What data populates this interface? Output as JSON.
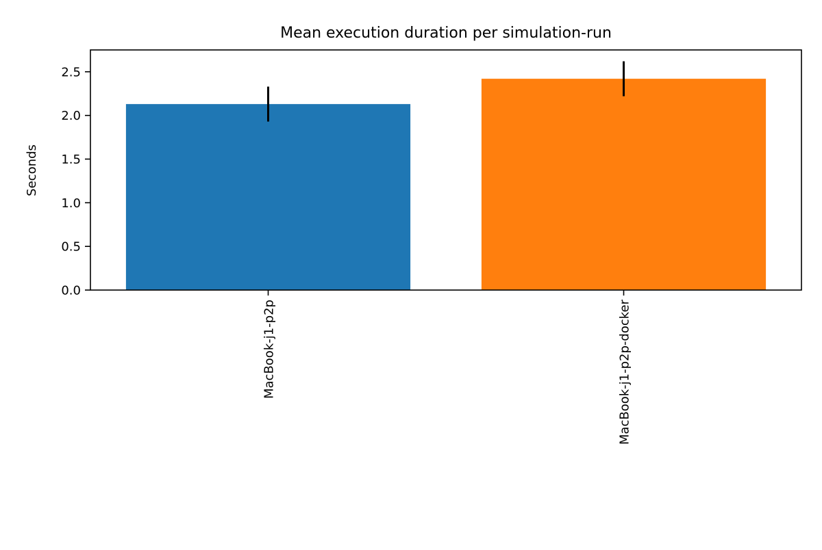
{
  "chart_data": {
    "type": "bar",
    "title": "Mean execution duration per simulation-run",
    "xlabel": "",
    "ylabel": "Seconds",
    "categories": [
      "MacBook-j1-p2p",
      "MacBook-j1-p2p-docker"
    ],
    "values": [
      2.13,
      2.42
    ],
    "errors": [
      0.2,
      0.2
    ],
    "colors": [
      "#1f77b4",
      "#ff7f0e"
    ],
    "error_color": "#000000",
    "ylim": [
      0,
      2.75
    ],
    "yticks": [
      0.0,
      0.5,
      1.0,
      1.5,
      2.0,
      2.5
    ],
    "ytick_labels": [
      "0.0",
      "0.5",
      "1.0",
      "1.5",
      "2.0",
      "2.5"
    ],
    "x_tick_rotation": "vertical",
    "grid": false,
    "legend": "none"
  }
}
